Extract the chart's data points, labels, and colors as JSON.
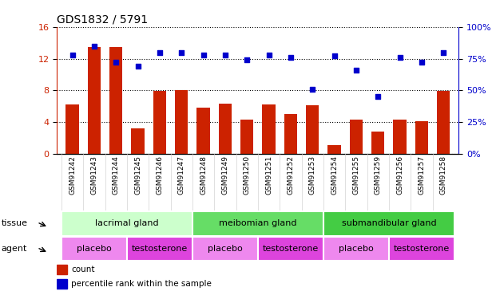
{
  "title": "GDS1832 / 5791",
  "samples": [
    "GSM91242",
    "GSM91243",
    "GSM91244",
    "GSM91245",
    "GSM91246",
    "GSM91247",
    "GSM91248",
    "GSM91249",
    "GSM91250",
    "GSM91251",
    "GSM91252",
    "GSM91253",
    "GSM91254",
    "GSM91255",
    "GSM91259",
    "GSM91256",
    "GSM91257",
    "GSM91258"
  ],
  "counts": [
    6.2,
    13.5,
    13.5,
    3.2,
    7.9,
    8.0,
    5.8,
    6.3,
    4.3,
    6.2,
    5.0,
    6.1,
    1.1,
    4.3,
    2.8,
    4.3,
    4.1,
    7.9
  ],
  "percentiles": [
    78,
    85,
    72,
    69,
    80,
    80,
    78,
    78,
    74,
    78,
    76,
    51,
    77,
    66,
    45,
    76,
    72,
    80
  ],
  "bar_color": "#cc2200",
  "dot_color": "#0000cc",
  "ylim_left": [
    0,
    16
  ],
  "ylim_right": [
    0,
    100
  ],
  "yticks_left": [
    0,
    4,
    8,
    12,
    16
  ],
  "yticks_right": [
    0,
    25,
    50,
    75,
    100
  ],
  "tissue_groups": [
    {
      "label": "lacrimal gland",
      "start": 0,
      "end": 6
    },
    {
      "label": "meibomian gland",
      "start": 6,
      "end": 12
    },
    {
      "label": "submandibular gland",
      "start": 12,
      "end": 18
    }
  ],
  "tissue_colors": [
    "#ccffcc",
    "#66dd66",
    "#44cc44"
  ],
  "agent_groups": [
    {
      "label": "placebo",
      "start": 0,
      "end": 3
    },
    {
      "label": "testosterone",
      "start": 3,
      "end": 6
    },
    {
      "label": "placebo",
      "start": 6,
      "end": 9
    },
    {
      "label": "testosterone",
      "start": 9,
      "end": 12
    },
    {
      "label": "placebo",
      "start": 12,
      "end": 15
    },
    {
      "label": "testosterone",
      "start": 15,
      "end": 18
    }
  ],
  "agent_color_placebo": "#ee88ee",
  "agent_color_testosterone": "#dd44dd",
  "legend_count_color": "#cc2200",
  "legend_percentile_color": "#0000cc",
  "title_color": "#000000",
  "bar_width": 0.6
}
